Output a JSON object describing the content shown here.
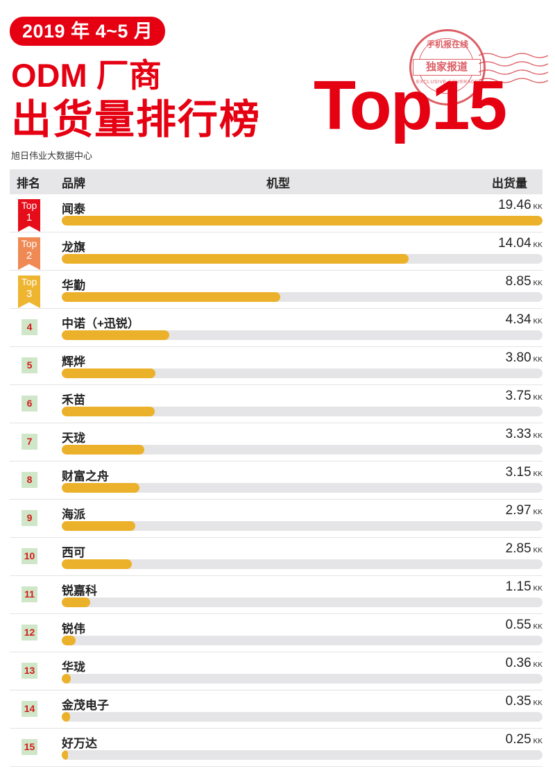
{
  "header": {
    "date_pill": "2019 年 4~5 月",
    "title_line1": "ODM 厂商",
    "title_line2": "出货量排行榜",
    "source": "旭日伟业大数据中心",
    "big_label": "Top15",
    "stamp": {
      "top_text": "手机报在线",
      "banner_text": "独家报道",
      "bottom_text": "EXCLUSIVE COVERAGE"
    }
  },
  "colors": {
    "brand_red": "#e50012",
    "bar_fill": "#ecb12a",
    "bar_track": "#e5e5e7",
    "header_bg": "#e6e6e8",
    "rank_box_bg": "#cfe6c8",
    "rank_box_text": "#d41b1b",
    "ribbon_1": "#e60d1a",
    "ribbon_2": "#ef8a55",
    "ribbon_3": "#eeb530"
  },
  "table": {
    "columns": [
      "排名",
      "品牌",
      "机型",
      "出货量"
    ],
    "unit": "KK",
    "ribbon_prefix": "Top",
    "rows": [
      {
        "rank": "1",
        "brand": "闻泰",
        "value": "19.46"
      },
      {
        "rank": "2",
        "brand": "龙旗",
        "value": "14.04"
      },
      {
        "rank": "3",
        "brand": "华勤",
        "value": "8.85"
      },
      {
        "rank": "4",
        "brand": "中诺（+迅锐）",
        "value": "4.34"
      },
      {
        "rank": "5",
        "brand": "辉烨",
        "value": "3.80"
      },
      {
        "rank": "6",
        "brand": "禾苗",
        "value": "3.75"
      },
      {
        "rank": "7",
        "brand": "天珑",
        "value": "3.33"
      },
      {
        "rank": "8",
        "brand": "财富之舟",
        "value": "3.15"
      },
      {
        "rank": "9",
        "brand": "海派",
        "value": "2.97"
      },
      {
        "rank": "10",
        "brand": "西可",
        "value": "2.85"
      },
      {
        "rank": "11",
        "brand": "锐嘉科",
        "value": "1.15"
      },
      {
        "rank": "12",
        "brand": "锐伟",
        "value": "0.55"
      },
      {
        "rank": "13",
        "brand": "华珑",
        "value": "0.36"
      },
      {
        "rank": "14",
        "brand": "金茂电子",
        "value": "0.35"
      },
      {
        "rank": "15",
        "brand": "好万达",
        "value": "0.25"
      }
    ]
  },
  "chart_data": {
    "type": "bar",
    "orientation": "horizontal",
    "title": "2019年4~5月 ODM厂商出货量排行榜 Top15",
    "subtitle": "旭日伟业大数据中心",
    "xlabel": "出货量 (KK)",
    "ylabel": "品牌",
    "categories": [
      "闻泰",
      "龙旗",
      "华勤",
      "中诺（+迅锐）",
      "辉烨",
      "禾苗",
      "天珑",
      "财富之舟",
      "海派",
      "西可",
      "锐嘉科",
      "锐伟",
      "华珑",
      "金茂电子",
      "好万达"
    ],
    "values": [
      19.46,
      14.04,
      8.85,
      4.34,
      3.8,
      3.75,
      3.33,
      3.15,
      2.97,
      2.85,
      1.15,
      0.55,
      0.36,
      0.35,
      0.25
    ],
    "xlim": [
      0,
      19.46
    ],
    "grid": false,
    "legend": null
  }
}
